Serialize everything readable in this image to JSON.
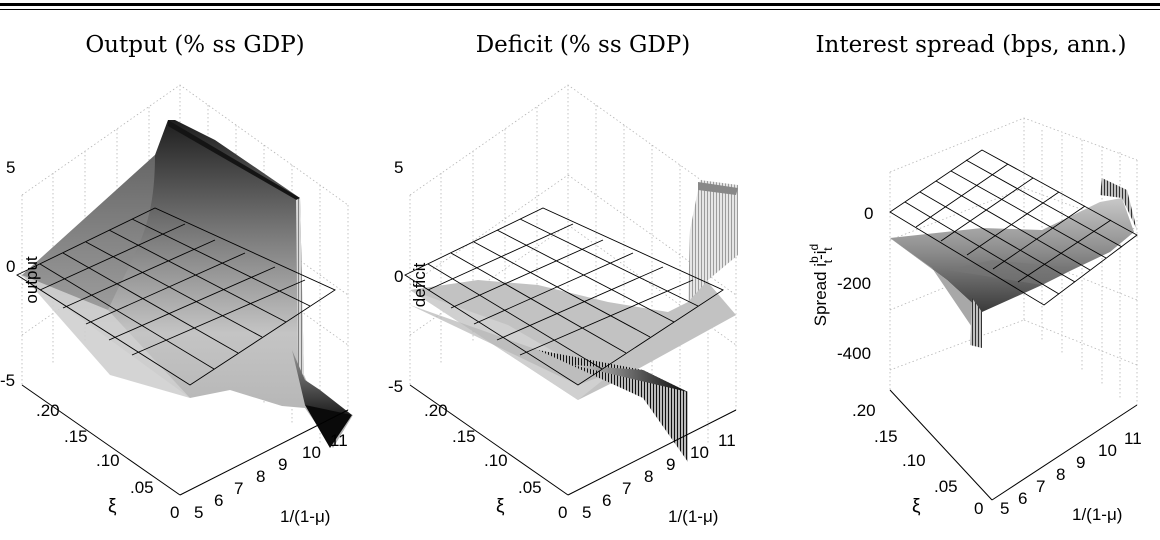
{
  "panels": [
    {
      "title": "Output (% ss GDP)",
      "zlabel": "output",
      "z_ticks": [
        "5",
        "0",
        "-5"
      ],
      "xi_ticks": [
        ".20",
        ".15",
        ".10",
        ".05",
        "0"
      ],
      "xi_label": "ξ",
      "mu_ticks": [
        "5",
        "6",
        "7",
        "8",
        "9",
        "10",
        "11"
      ],
      "mu_label": "1/(1-μ)"
    },
    {
      "title": "Deficit (% ss GDP)",
      "zlabel": "deficit",
      "z_ticks": [
        "5",
        "0",
        "-5"
      ],
      "xi_ticks": [
        ".20",
        ".15",
        ".10",
        ".05",
        "0"
      ],
      "xi_label": "ξ",
      "mu_ticks": [
        "5",
        "6",
        "7",
        "8",
        "9",
        "10",
        "11"
      ],
      "mu_label": "1/(1-μ)"
    },
    {
      "title": "Interest spread (bps, ann.)",
      "zlabel": "Spread i",
      "zlabel_sup1": "b",
      "zlabel_sub1": "t",
      "zlabel_mid": "-i",
      "zlabel_sup2": "d",
      "zlabel_sub2": "t",
      "z_ticks": [
        "0",
        "-200",
        "-400"
      ],
      "xi_ticks": [
        ".20",
        ".15",
        ".10",
        ".05",
        "0"
      ],
      "xi_label": "ξ",
      "mu_ticks": [
        "5",
        "6",
        "7",
        "8",
        "9",
        "10",
        "11"
      ],
      "mu_label": "1/(1-μ)"
    }
  ],
  "chart_data": [
    {
      "type": "surface",
      "title": "Output (% ss GDP)",
      "x_axis": {
        "label": "1/(1-μ)",
        "range": [
          5,
          11
        ]
      },
      "y_axis": {
        "label": "ξ",
        "range": [
          0,
          0.2
        ]
      },
      "z_axis": {
        "label": "output",
        "range": [
          -5,
          5
        ]
      },
      "reference_plane_z": 0,
      "surface_z": [
        [
          -0.2,
          -0.4,
          -0.6,
          -0.9,
          -1.2,
          -1.6,
          -3.5
        ],
        [
          0.3,
          0.1,
          -0.2,
          -0.5,
          -0.9,
          -1.3,
          -4.0
        ],
        [
          1.2,
          0.8,
          0.4,
          0.0,
          -0.5,
          -1.0,
          -4.5
        ],
        [
          3.0,
          2.2,
          1.4,
          0.7,
          0.1,
          -0.6,
          -5.0
        ],
        [
          6.8,
          5.8,
          4.6,
          3.4,
          2.2,
          1.0,
          -5.0
        ]
      ],
      "surface_y": [
        0,
        0.05,
        0.1,
        0.15,
        0.2
      ],
      "surface_x": [
        5,
        6,
        7,
        8,
        9,
        10,
        11
      ]
    },
    {
      "type": "surface",
      "title": "Deficit (% ss GDP)",
      "x_axis": {
        "label": "1/(1-μ)",
        "range": [
          5,
          11
        ]
      },
      "y_axis": {
        "label": "ξ",
        "range": [
          0,
          0.2
        ]
      },
      "z_axis": {
        "label": "deficit",
        "range": [
          -5,
          5
        ]
      },
      "reference_plane_z": 0,
      "surface_z": [
        [
          -1.0,
          -1.1,
          -1.3,
          -1.5,
          -1.8,
          -2.4,
          -3.0
        ],
        [
          -1.0,
          -1.2,
          -1.5,
          -1.8,
          -2.3,
          -3.0,
          1.5
        ],
        [
          -0.8,
          -1.0,
          -1.3,
          -1.7,
          -2.4,
          -3.4,
          3.0
        ],
        [
          -0.6,
          -0.8,
          -1.1,
          -1.5,
          -2.3,
          -3.8,
          4.0
        ],
        [
          -0.4,
          -0.5,
          -0.8,
          -1.2,
          -2.0,
          -4.2,
          4.5
        ]
      ],
      "surface_y": [
        0,
        0.05,
        0.1,
        0.15,
        0.2
      ],
      "surface_x": [
        5,
        6,
        7,
        8,
        9,
        10,
        11
      ]
    },
    {
      "type": "surface",
      "title": "Interest spread (bps, ann.)",
      "x_axis": {
        "label": "1/(1-μ)",
        "range": [
          5,
          11
        ]
      },
      "y_axis": {
        "label": "ξ",
        "range": [
          0,
          0.2
        ]
      },
      "z_axis": {
        "label": "Spread i^b_t-i^d_t",
        "range": [
          -400,
          100
        ]
      },
      "reference_plane_z": 0,
      "surface_z": [
        [
          -60,
          -90,
          -130,
          -170,
          -220,
          -280,
          -380
        ],
        [
          -40,
          -60,
          -90,
          -120,
          -160,
          -200,
          -200
        ],
        [
          -30,
          -45,
          -60,
          -80,
          -100,
          -110,
          -100
        ],
        [
          -20,
          -30,
          -40,
          -50,
          -60,
          -60,
          -40
        ],
        [
          -10,
          -15,
          -20,
          -25,
          -30,
          -30,
          50
        ]
      ],
      "surface_y": [
        0,
        0.05,
        0.1,
        0.15,
        0.2
      ],
      "surface_x": [
        5,
        6,
        7,
        8,
        9,
        10,
        11
      ]
    }
  ]
}
